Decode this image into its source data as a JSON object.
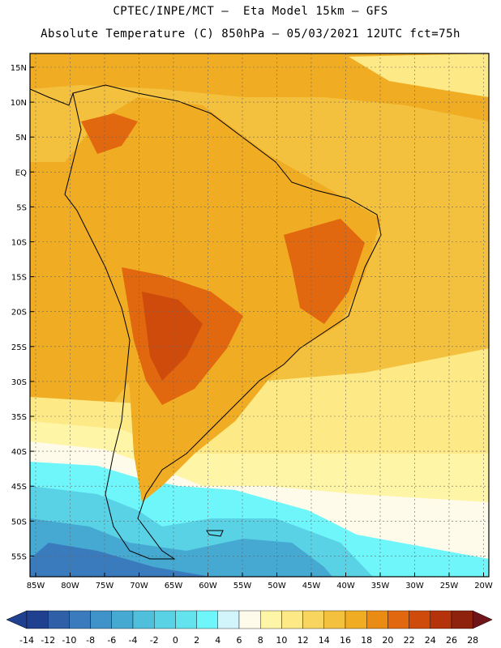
{
  "title_line1": "CPTEC/INPE/MCT –  Eta Model 15km – GFS",
  "title_line2": "Absolute Temperature (C) 850hPa – 05/03/2021 12UTC fct=75h",
  "lat_labels": [
    "15N",
    "10N",
    "5N",
    "EQ",
    "5S",
    "10S",
    "15S",
    "20S",
    "25S",
    "30S",
    "35S",
    "40S",
    "45S",
    "50S",
    "55S"
  ],
  "lon_labels": [
    "85W",
    "80W",
    "75W",
    "70W",
    "65W",
    "60W",
    "55W",
    "50W",
    "45W",
    "40W",
    "35W",
    "30W",
    "25W",
    "20W"
  ],
  "colorbar": {
    "labels": [
      "-14",
      "-12",
      "-10",
      "-8",
      "-6",
      "-4",
      "-2",
      "0",
      "2",
      "4",
      "6",
      "8",
      "10",
      "12",
      "14",
      "16",
      "18",
      "20",
      "22",
      "24",
      "26",
      "28"
    ],
    "colors": [
      "#1f3f8f",
      "#2f5fa6",
      "#3a7bbd",
      "#3f93c8",
      "#45a9d2",
      "#4fbfdc",
      "#5ad2e6",
      "#63e3ee",
      "#6ff6fb",
      "#d2f4fb",
      "#fffbea",
      "#fff5a6",
      "#fde985",
      "#f8d55e",
      "#f4c13e",
      "#f0ac22",
      "#ea8c14",
      "#e1680f",
      "#cf4b0c",
      "#b4330a",
      "#8e220d",
      "#6f1418"
    ]
  },
  "palette": {
    "warm": "#f0ac22",
    "hot": "#e1680f",
    "hotter": "#cf4b0c",
    "mild": "#f4c13e",
    "cool": "#fde985",
    "pale": "#fffbea",
    "cold": "#6ff6fb",
    "colder": "#4fbfdc",
    "coldest": "#3a7bbd"
  }
}
